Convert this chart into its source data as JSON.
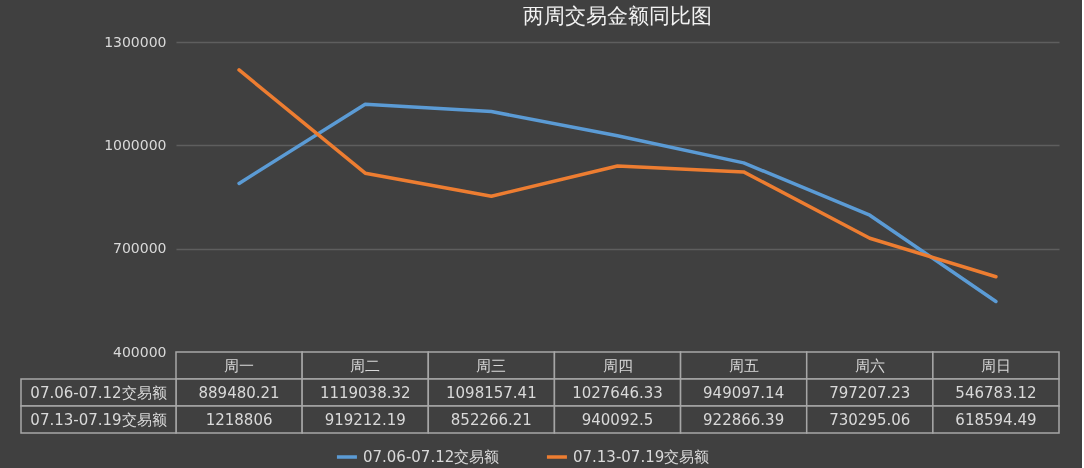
{
  "chart_data": {
    "type": "line",
    "title": "两周交易金额同比图",
    "categories": [
      "周一",
      "周二",
      "周三",
      "周四",
      "周五",
      "周六",
      "周日"
    ],
    "series": [
      {
        "name": "07.06-07.12交易额",
        "color": "#5b9bd5",
        "values": [
          889480.21,
          1119038.32,
          1098157.41,
          1027646.33,
          949097.14,
          797207.23,
          546783.12
        ]
      },
      {
        "name": "07.13-07.19交易额",
        "color": "#ed7d31",
        "values": [
          1218806,
          919212.19,
          852266.21,
          940092.5,
          922866.39,
          730295.06,
          618594.49
        ]
      }
    ],
    "ylim": [
      400000,
      1300000
    ],
    "yticks": [
      400000,
      700000,
      1000000,
      1300000
    ],
    "grid": "y",
    "legend": "bottom",
    "data_labels": true,
    "line_style": "solid"
  }
}
